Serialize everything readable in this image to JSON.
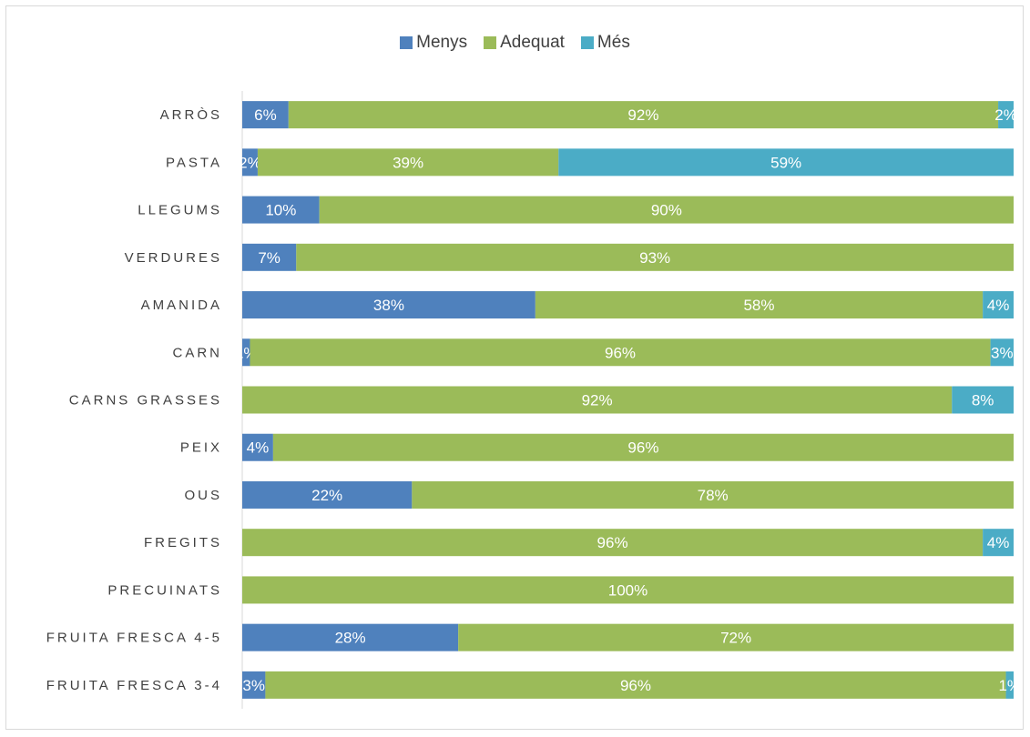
{
  "chart_data": {
    "type": "bar",
    "orientation": "horizontal",
    "stacked": true,
    "percent": true,
    "categories": [
      "ARRÒS",
      "PASTA",
      "LLEGUMS",
      "VERDURES",
      "AMANIDA",
      "CARN",
      "CARNS GRASSES",
      "PEIX",
      "OUS",
      "FREGITS",
      "PRECUINATS",
      "FRUITA FRESCA 4-5",
      "FRUITA FRESCA 3-4"
    ],
    "series": [
      {
        "name": "Menys",
        "color": "#4f81bd",
        "values": [
          6,
          2,
          10,
          7,
          38,
          1,
          0,
          4,
          22,
          0,
          0,
          28,
          3
        ]
      },
      {
        "name": "Adequat",
        "color": "#9bbb59",
        "values": [
          92,
          39,
          90,
          93,
          58,
          96,
          92,
          96,
          78,
          96,
          100,
          72,
          96
        ]
      },
      {
        "name": "Més",
        "color": "#4bacc6",
        "values": [
          2,
          59,
          0,
          0,
          4,
          3,
          8,
          0,
          0,
          4,
          0,
          0,
          1
        ]
      }
    ],
    "xlim": [
      0,
      100
    ],
    "grid": false,
    "legend_position": "top"
  }
}
